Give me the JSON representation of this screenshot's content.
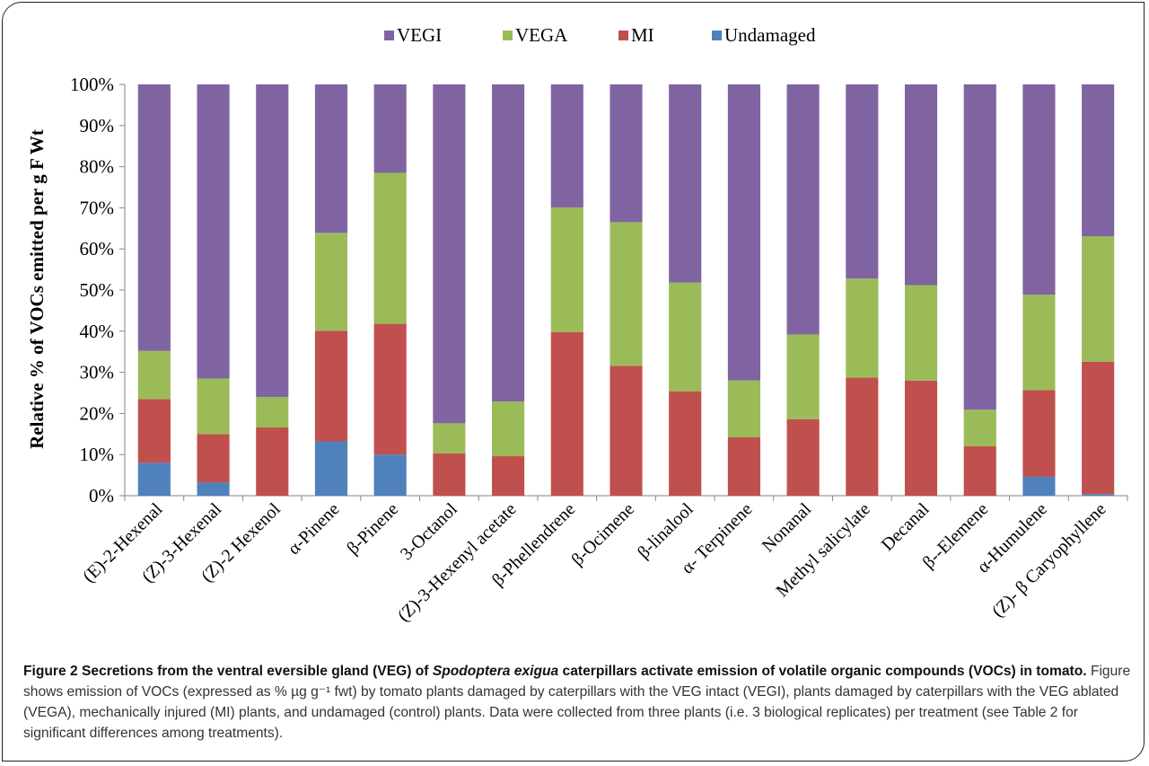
{
  "chart_data": {
    "type": "bar",
    "stacked": "percent",
    "ylabel": "Relative %  of VOCs emitted per g F Wt",
    "ylim": [
      0,
      100
    ],
    "yticks": [
      "0%",
      "10%",
      "20%",
      "30%",
      "40%",
      "50%",
      "60%",
      "70%",
      "80%",
      "90%",
      "100%"
    ],
    "legend_position": "top",
    "categories": [
      "(E)-2-Hexenal",
      "(Z)-3-Hexenal",
      "(Z)-2 Hexenol",
      "α-Pinene",
      "β-Pinene",
      "3-Octanol",
      "(Z)-3-Hexenyl acetate",
      "β-Phellendrene",
      "β-Ocimene",
      "β-linalool",
      "α- Terpinene",
      "Nonanal",
      "Methyl salicylate",
      "Decanal",
      "β--Elemene",
      "α-Humulene",
      "(Z)- β Caryophyllene"
    ],
    "series": [
      {
        "name": "Undamaged",
        "color": "#4f81bd",
        "values": [
          8,
          3.2,
          0,
          13.2,
          10,
          0,
          0,
          0,
          0,
          0,
          0,
          0,
          0,
          0,
          0,
          4.6,
          0.4
        ]
      },
      {
        "name": "MI",
        "color": "#c0504d",
        "values": [
          15.5,
          11.8,
          16.6,
          26.9,
          31.8,
          10.3,
          9.6,
          39.8,
          31.6,
          25.4,
          14.2,
          18.6,
          28.7,
          28,
          12,
          21.1,
          32.2
        ]
      },
      {
        "name": "VEGA",
        "color": "#9bbb59",
        "values": [
          11.7,
          13.5,
          7.4,
          23.8,
          36.7,
          7.3,
          13.3,
          30.3,
          34.9,
          26.4,
          13.8,
          20.6,
          24.1,
          23.2,
          8.9,
          23.2,
          30.5
        ]
      },
      {
        "name": "VEGI",
        "color": "#8064a2",
        "values": [
          64.8,
          71.5,
          76,
          36.1,
          21.5,
          82.4,
          77.1,
          29.9,
          33.5,
          48.2,
          72,
          60.8,
          47.2,
          48.8,
          79.1,
          51.1,
          36.9
        ]
      }
    ],
    "legend_order": [
      "VEGI",
      "VEGA",
      "MI",
      "Undamaged"
    ]
  },
  "caption": {
    "figure_label": "Figure 2",
    "title_part1": "Secretions from the ventral eversible gland (VEG) of",
    "title_italic": "Spodoptera exigua",
    "title_part2": "caterpillars activate emission of volatile organic compounds (VOCs) in tomato.",
    "body": "Figure shows emission of VOCs (expressed as % µg g⁻¹ fwt) by tomato plants damaged by caterpillars with the VEG intact (VEGI), plants damaged by caterpillars with the VEG ablated (VEGA), mechanically injured (MI) plants, and undamaged (control) plants. Data were collected from three plants (i.e. 3 biological replicates) per treatment (see Table 2 for significant differences among treatments)."
  }
}
